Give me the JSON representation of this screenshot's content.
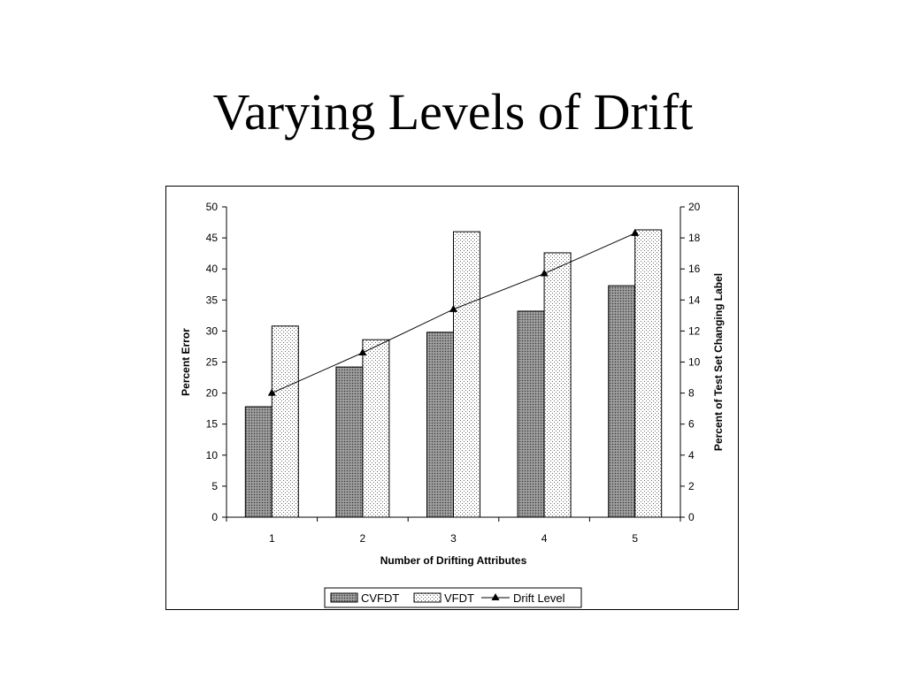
{
  "slide": {
    "title": "Varying Levels of Drift"
  },
  "chart_data": {
    "type": "bar",
    "categories": [
      "1",
      "2",
      "3",
      "4",
      "5"
    ],
    "xlabel": "Number of Drifting Attributes",
    "ylabel": "Percent Error",
    "y2label": "Percent of Test Set Changing Label",
    "ylim": [
      0,
      50
    ],
    "y2lim": [
      0,
      20
    ],
    "yticks": [
      0,
      5,
      10,
      15,
      20,
      25,
      30,
      35,
      40,
      45,
      50
    ],
    "y2ticks": [
      0,
      2,
      4,
      6,
      8,
      10,
      12,
      14,
      16,
      18,
      20
    ],
    "grid": false,
    "legend_position": "bottom",
    "series": [
      {
        "name": "CVFDT",
        "type": "bar",
        "axis": "left",
        "values": [
          17.8,
          24.2,
          29.8,
          33.2,
          37.3
        ]
      },
      {
        "name": "VFDT",
        "type": "bar",
        "axis": "left",
        "values": [
          30.8,
          28.6,
          46.0,
          42.6,
          46.3
        ]
      },
      {
        "name": "Drift Level",
        "type": "line",
        "axis": "right",
        "values": [
          8.0,
          10.6,
          13.4,
          15.7,
          18.3
        ]
      }
    ]
  }
}
